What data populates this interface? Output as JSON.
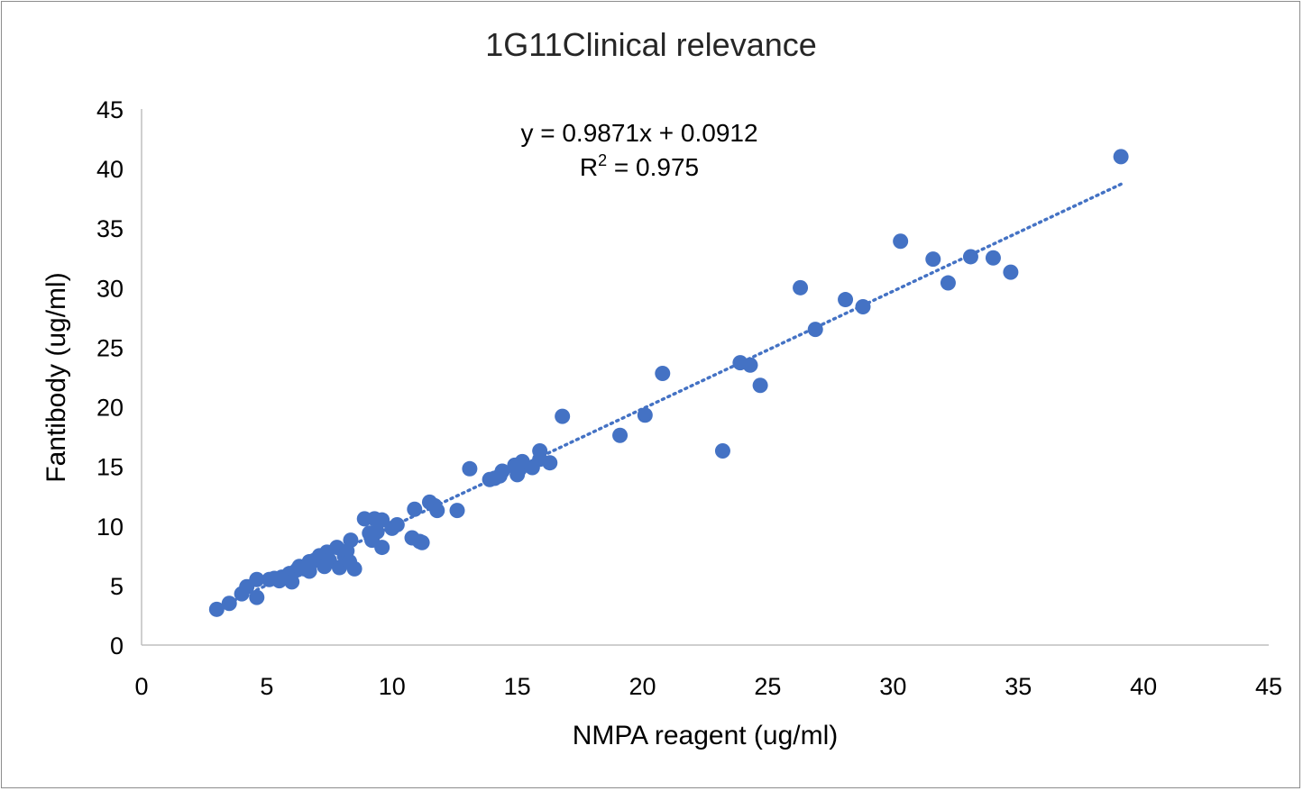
{
  "chart_data": {
    "type": "scatter",
    "title": "1G11Clinical relevance",
    "xlabel": "NMPA reagent (ug/ml)",
    "ylabel": "Fantibody (ug/ml)",
    "xlim": [
      0,
      45
    ],
    "ylim": [
      0,
      45
    ],
    "xticks": [
      0,
      5,
      10,
      15,
      20,
      25,
      30,
      35,
      40,
      45
    ],
    "yticks": [
      0,
      5,
      10,
      15,
      20,
      25,
      30,
      35,
      40,
      45
    ],
    "grid": false,
    "legend": "none",
    "marker_color": "#4472C4",
    "trendline": {
      "type": "linear",
      "slope": 0.9871,
      "intercept": 0.0912,
      "x_range": [
        3,
        39.1
      ],
      "style": "dotted",
      "color": "#4472C4",
      "equation_text": "y = 0.9871x + 0.0912",
      "r2_label": "R",
      "r2_sup": "2",
      "r2_value_text": " = 0.975"
    },
    "points": [
      [
        3.0,
        3.0
      ],
      [
        3.5,
        3.5
      ],
      [
        4.0,
        4.3
      ],
      [
        4.2,
        4.9
      ],
      [
        4.6,
        4.0
      ],
      [
        4.6,
        5.5
      ],
      [
        5.1,
        5.5
      ],
      [
        5.3,
        5.6
      ],
      [
        5.5,
        5.4
      ],
      [
        5.6,
        5.7
      ],
      [
        5.9,
        6.0
      ],
      [
        6.0,
        5.3
      ],
      [
        6.2,
        6.3
      ],
      [
        6.3,
        6.6
      ],
      [
        6.5,
        6.4
      ],
      [
        6.7,
        6.2
      ],
      [
        6.7,
        7.0
      ],
      [
        6.9,
        7.1
      ],
      [
        7.1,
        7.5
      ],
      [
        7.3,
        6.6
      ],
      [
        7.4,
        7.8
      ],
      [
        7.5,
        7.1
      ],
      [
        7.8,
        8.2
      ],
      [
        7.9,
        6.5
      ],
      [
        8.1,
        7.5
      ],
      [
        8.2,
        7.9
      ],
      [
        8.3,
        7.0
      ],
      [
        8.35,
        8.8
      ],
      [
        8.5,
        6.4
      ],
      [
        8.9,
        10.6
      ],
      [
        9.1,
        9.4
      ],
      [
        9.2,
        8.8
      ],
      [
        9.3,
        10.6
      ],
      [
        9.4,
        9.5
      ],
      [
        9.6,
        8.2
      ],
      [
        9.6,
        10.5
      ],
      [
        10.0,
        9.8
      ],
      [
        10.2,
        10.1
      ],
      [
        10.8,
        9.0
      ],
      [
        10.9,
        11.4
      ],
      [
        11.1,
        8.7
      ],
      [
        11.2,
        8.6
      ],
      [
        11.5,
        12.0
      ],
      [
        11.7,
        11.7
      ],
      [
        11.8,
        11.3
      ],
      [
        12.6,
        11.3
      ],
      [
        13.1,
        14.8
      ],
      [
        13.9,
        13.9
      ],
      [
        14.1,
        14.0
      ],
      [
        14.3,
        14.2
      ],
      [
        14.4,
        14.6
      ],
      [
        14.9,
        15.1
      ],
      [
        15.0,
        14.3
      ],
      [
        15.1,
        14.8
      ],
      [
        15.2,
        15.4
      ],
      [
        15.6,
        14.9
      ],
      [
        15.9,
        16.3
      ],
      [
        15.9,
        15.6
      ],
      [
        16.3,
        15.3
      ],
      [
        16.8,
        19.2
      ],
      [
        19.1,
        17.6
      ],
      [
        20.1,
        19.3
      ],
      [
        20.8,
        22.8
      ],
      [
        23.2,
        16.3
      ],
      [
        23.9,
        23.7
      ],
      [
        24.3,
        23.5
      ],
      [
        24.7,
        21.8
      ],
      [
        26.3,
        30.0
      ],
      [
        26.9,
        26.5
      ],
      [
        28.1,
        29.0
      ],
      [
        28.8,
        28.4
      ],
      [
        30.3,
        33.9
      ],
      [
        31.6,
        32.4
      ],
      [
        32.2,
        30.4
      ],
      [
        33.1,
        32.6
      ],
      [
        34.0,
        32.5
      ],
      [
        34.7,
        31.3
      ],
      [
        39.1,
        41.0
      ]
    ]
  }
}
